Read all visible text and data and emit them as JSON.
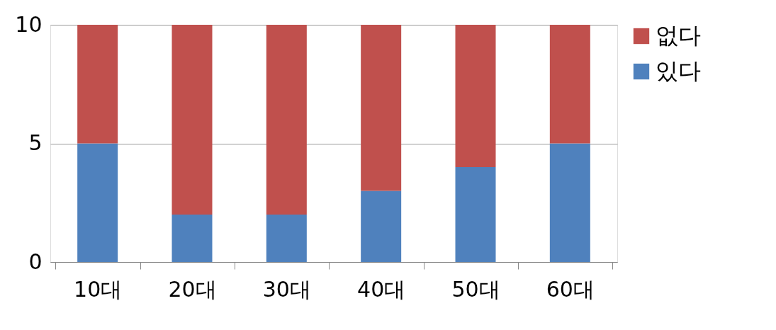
{
  "chart_data": {
    "type": "bar",
    "stacked": true,
    "categories": [
      "10대",
      "20대",
      "30대",
      "40대",
      "50대",
      "60대"
    ],
    "series": [
      {
        "name": "있다",
        "color": "#4f81bd",
        "values": [
          5,
          2,
          2,
          3,
          4,
          5
        ]
      },
      {
        "name": "없다",
        "color": "#c0504d",
        "values": [
          5,
          8,
          8,
          7,
          6,
          5
        ]
      }
    ],
    "ylim": [
      0,
      10
    ],
    "yticks": [
      0,
      5,
      10
    ],
    "grid": "y",
    "legend": "right"
  }
}
